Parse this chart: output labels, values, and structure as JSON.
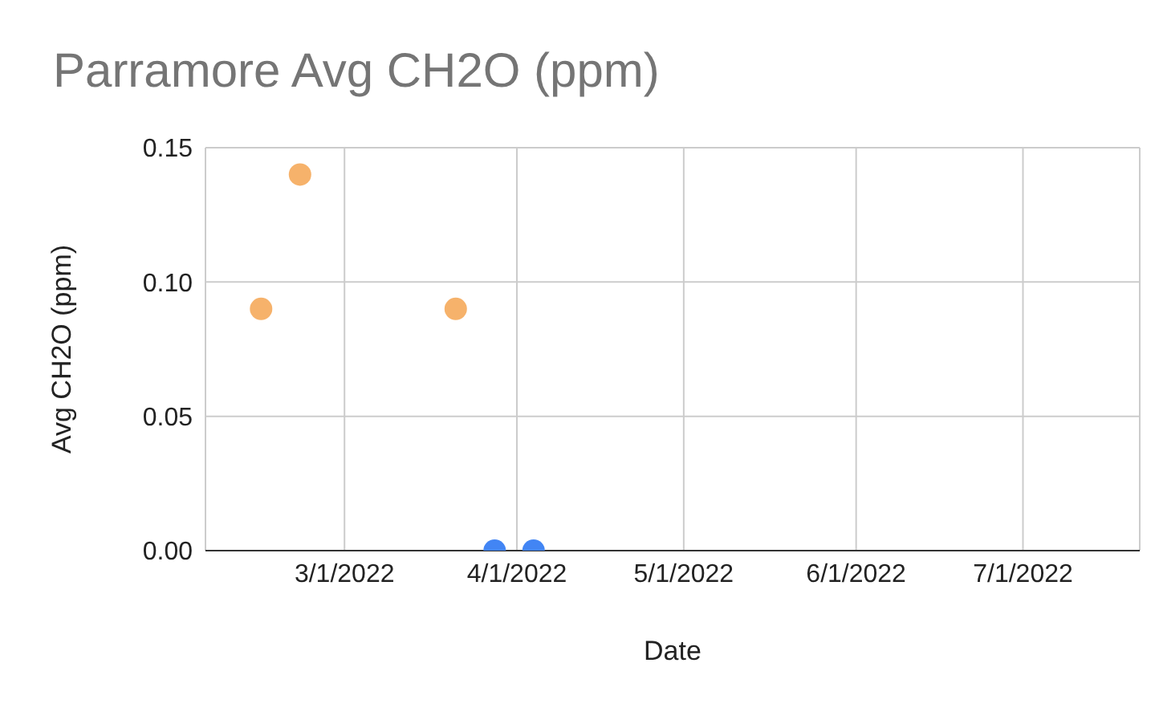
{
  "chart_data": {
    "type": "scatter",
    "title": "Parramore Avg CH2O  (ppm)",
    "xlabel": "Date",
    "ylabel": "Avg CH2O  (ppm)",
    "xlim": [
      "2022-02-04",
      "2022-07-22"
    ],
    "xticks": [
      {
        "value": "2022-03-01",
        "label": "3/1/2022"
      },
      {
        "value": "2022-04-01",
        "label": "4/1/2022"
      },
      {
        "value": "2022-05-01",
        "label": "5/1/2022"
      },
      {
        "value": "2022-06-01",
        "label": "6/1/2022"
      },
      {
        "value": "2022-07-01",
        "label": "7/1/2022"
      }
    ],
    "ylim": [
      0,
      0.15
    ],
    "yticks": [
      {
        "value": 0,
        "label": "0.00"
      },
      {
        "value": 0.05,
        "label": "0.05"
      },
      {
        "value": 0.1,
        "label": "0.10"
      },
      {
        "value": 0.15,
        "label": "0.15"
      }
    ],
    "grid": true,
    "marker": "circle",
    "series": [
      {
        "color": "#f6b26b",
        "x": [
          "2022-02-14",
          "2022-02-21",
          "2022-03-21"
        ],
        "values": [
          0.09,
          0.14,
          0.09
        ]
      },
      {
        "color": "#4285f4",
        "x": [
          "2022-03-28",
          "2022-04-04"
        ],
        "values": [
          0,
          0
        ]
      }
    ]
  }
}
